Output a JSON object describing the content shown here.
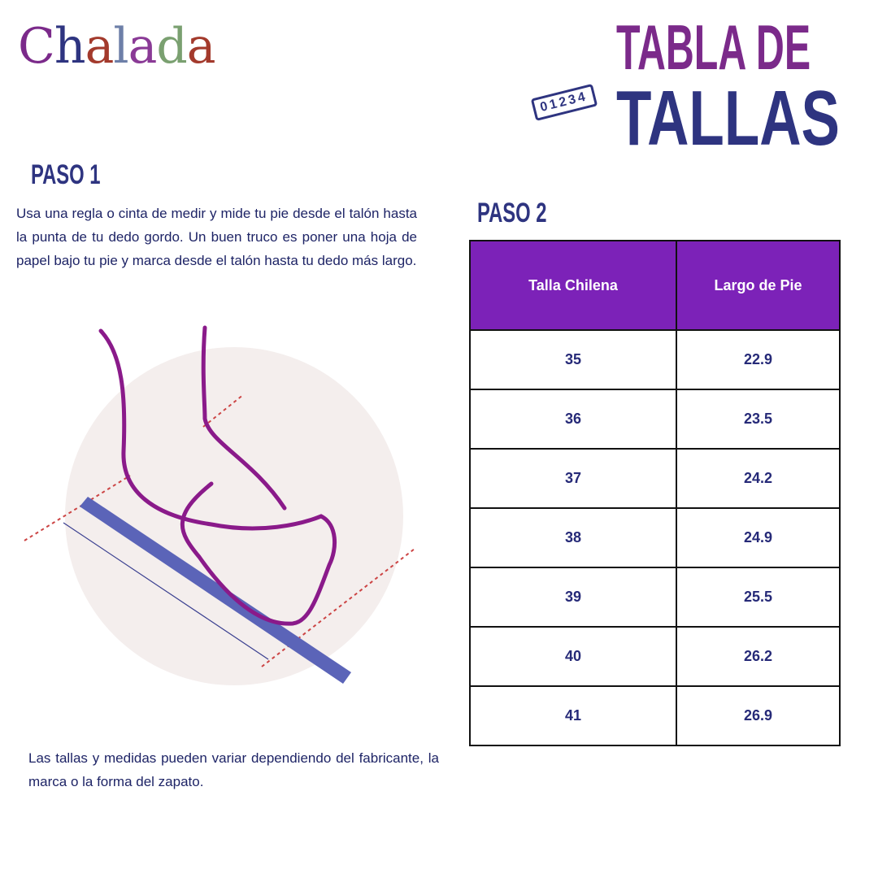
{
  "brand": {
    "logo_text": "Chalada",
    "letter_colors": [
      "#7b2a8a",
      "#2e3480",
      "#a33a2c",
      "#6d7fa8",
      "#8a3a96",
      "#7aa070",
      "#a33a2c"
    ]
  },
  "title": {
    "line1": "TABLA DE",
    "line2": "TALLAS",
    "ruler_label": "01234",
    "colors": {
      "line1": "#7b2a8a",
      "line2": "#2e3480"
    }
  },
  "step1": {
    "heading": "PASO 1",
    "text": "Usa una regla o cinta de medir y mide tu pie desde el talón hasta la punta de tu dedo gordo. Un buen truco es poner una hoja de papel bajo tu pie y marca desde el talón hasta tu dedo más largo."
  },
  "step2": {
    "heading": "PASO 2"
  },
  "table": {
    "header_color": "#7c22b8",
    "columns": [
      "Talla Chilena",
      "Largo de Pie"
    ],
    "rows": [
      [
        "35",
        "22.9"
      ],
      [
        "36",
        "23.5"
      ],
      [
        "37",
        "24.2"
      ],
      [
        "38",
        "24.9"
      ],
      [
        "39",
        "25.5"
      ],
      [
        "40",
        "26.2"
      ],
      [
        "41",
        "26.9"
      ]
    ]
  },
  "note": "Las tallas y medidas pueden variar dependiendo del fabricante, la marca o la forma del zapato."
}
